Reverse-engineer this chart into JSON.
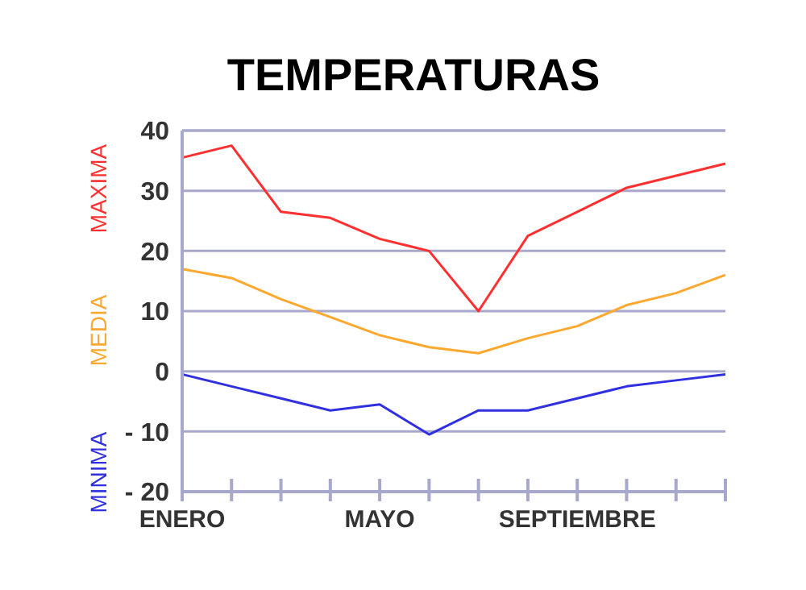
{
  "chart_data": {
    "type": "line",
    "title": "TEMPERATURAS",
    "categories": [
      "ENERO",
      null,
      null,
      null,
      "MAYO",
      null,
      null,
      null,
      "SEPTIEMBRE",
      null,
      null,
      null
    ],
    "series": [
      {
        "name": "MAXIMA",
        "color": "#ff3030",
        "values": [
          35.5,
          37.5,
          26.5,
          25.5,
          22,
          20,
          10,
          22.5,
          26.5,
          30.5,
          32.5,
          34.5
        ]
      },
      {
        "name": "MEDIA",
        "color": "#ffa830",
        "values": [
          17,
          15.5,
          12,
          9,
          6,
          4,
          3,
          5.5,
          7.5,
          11,
          13,
          16
        ]
      },
      {
        "name": "MINIMA",
        "color": "#3030e0",
        "values": [
          -0.5,
          -2.5,
          -4.5,
          -6.5,
          -5.5,
          -10.5,
          -6.5,
          -6.5,
          -4.5,
          -2.5,
          -1.5,
          -0.5
        ]
      }
    ],
    "ylim": [
      -20,
      40
    ],
    "yticks": [
      {
        "value": -20,
        "label": "- 20"
      },
      {
        "value": -10,
        "label": "- 10"
      },
      0,
      10,
      20,
      30,
      40
    ],
    "grid": "y",
    "marker": "none",
    "line_style": "solid"
  }
}
